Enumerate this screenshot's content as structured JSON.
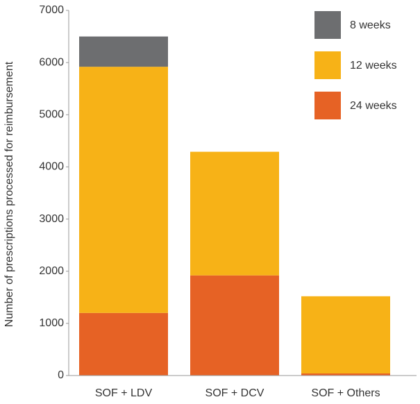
{
  "chart_data": {
    "type": "stacked-bar",
    "y_label": "Number of prescriptions processed for reimbursement",
    "categories": [
      "SOF + LDV",
      "SOF + DCV",
      "SOF + Others"
    ],
    "series": [
      {
        "name": "24 weeks",
        "color": "#e66225",
        "values": [
          1200,
          1920,
          40
        ]
      },
      {
        "name": "12 weeks",
        "color": "#f7b217",
        "values": [
          4720,
          2370,
          1480
        ]
      },
      {
        "name": "8 weeks",
        "color": "#6d6e70",
        "values": [
          580,
          0,
          0
        ]
      }
    ],
    "ylim": [
      0,
      7000
    ],
    "yticks": [
      0,
      1000,
      2000,
      3000,
      4000,
      5000,
      6000,
      7000
    ],
    "legend": "top-right"
  }
}
